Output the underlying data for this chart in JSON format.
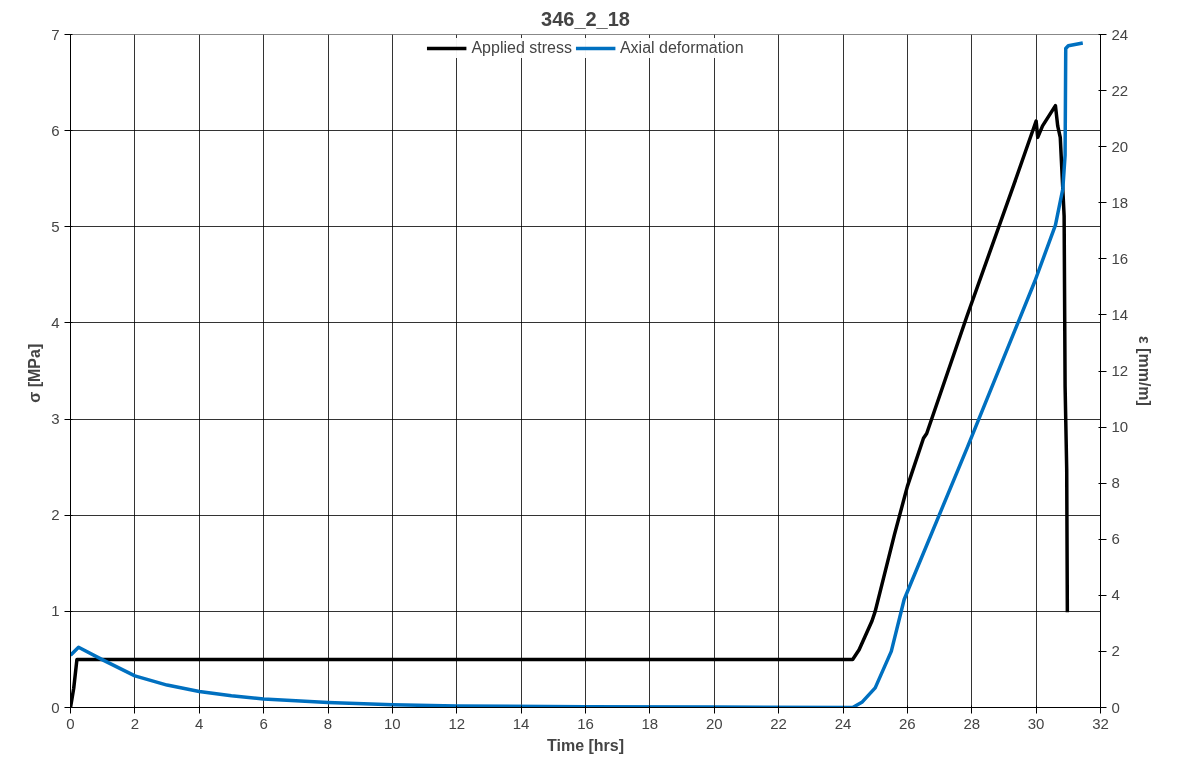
{
  "chart_data": {
    "type": "line",
    "title": "346_2_18",
    "xlabel": "Time [hrs]",
    "ylabel": "σ  [MPa]",
    "y2label": "ε [mm/m]",
    "xlim": [
      0,
      32
    ],
    "xticks": [
      0,
      2,
      4,
      6,
      8,
      10,
      12,
      14,
      16,
      18,
      20,
      22,
      24,
      26,
      28,
      30,
      32
    ],
    "ylim": [
      0,
      7
    ],
    "yticks": [
      0,
      1,
      2,
      3,
      4,
      5,
      6,
      7
    ],
    "y2lim": [
      0,
      24
    ],
    "y2ticks": [
      0,
      2,
      4,
      6,
      8,
      10,
      12,
      14,
      16,
      18,
      20,
      22,
      24
    ],
    "grid": true,
    "legend": "top",
    "line_style": "solid",
    "marker": "none",
    "series": [
      {
        "name": "Applied stress",
        "color": "#000000",
        "x": [
          0,
          0.05,
          0.1,
          0.2,
          24.3,
          24.5,
          24.9,
          25.0,
          25.3,
          25.6,
          26.0,
          26.5,
          26.6,
          27.85,
          29.3,
          30.0,
          30.05,
          30.2,
          30.6,
          30.67,
          30.75,
          30.87,
          30.9,
          30.95,
          30.97
        ],
        "values": [
          0,
          0.1,
          0.2,
          0.5,
          0.5,
          0.6,
          0.9,
          1.0,
          1.4,
          1.8,
          2.3,
          2.8,
          2.85,
          4.07,
          5.43,
          6.1,
          5.93,
          6.05,
          6.26,
          6.05,
          5.93,
          5.11,
          3.34,
          2.48,
          0.99
        ]
      },
      {
        "name": "Axial deformation",
        "color": "#0070c0",
        "axis": "y2",
        "x": [
          0,
          0.25,
          1,
          2,
          3,
          4,
          5,
          6,
          8,
          10,
          12,
          16,
          20,
          24.3,
          24.6,
          25,
          25.5,
          25.9,
          27.86,
          29.96,
          30.6,
          30.83,
          30.9,
          30.92,
          31.0,
          31.45
        ],
        "values": [
          1.86,
          2.15,
          1.7,
          1.13,
          0.8,
          0.57,
          0.42,
          0.3,
          0.18,
          0.1,
          0.05,
          0.03,
          0.02,
          0,
          0.2,
          0.7,
          2.0,
          3.85,
          9.27,
          15.2,
          17.2,
          18.5,
          19.7,
          23.5,
          23.6,
          23.7
        ]
      }
    ]
  }
}
